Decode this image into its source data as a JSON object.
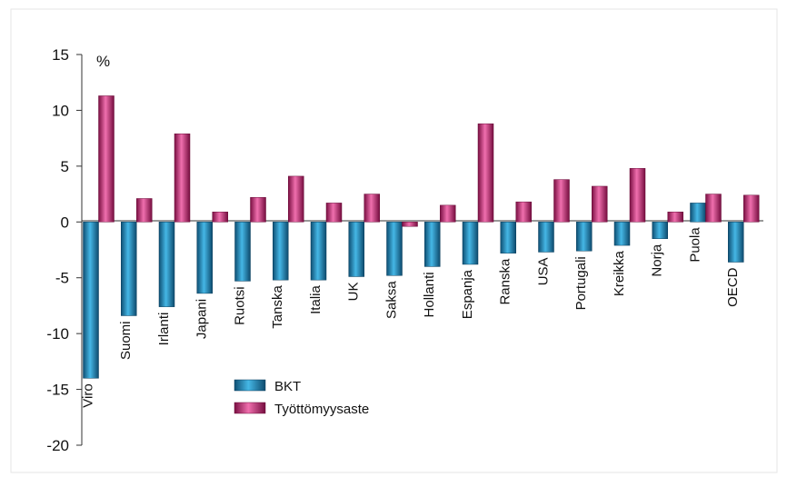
{
  "chart_data": {
    "type": "bar",
    "title": "",
    "ylabel": "%",
    "xlabel": "",
    "ylim": [
      -20,
      15
    ],
    "yticks": [
      15,
      10,
      5,
      0,
      -5,
      -10,
      -15,
      -20
    ],
    "categories": [
      "Viro",
      "Suomi",
      "Irlanti",
      "Japani",
      "Ruotsi",
      "Tanska",
      "Italia",
      "UK",
      "Saksa",
      "Hollanti",
      "Espanja",
      "Ranska",
      "USA",
      "Portugali",
      "Kreikka",
      "Norja",
      "Puola",
      "OECD"
    ],
    "series": [
      {
        "name": "BKT",
        "color": "#1f7fb0",
        "values": [
          -14.0,
          -8.4,
          -7.6,
          -6.4,
          -5.3,
          -5.2,
          -5.2,
          -4.9,
          -4.8,
          -4.0,
          -3.8,
          -2.8,
          -2.7,
          -2.6,
          -2.1,
          -1.5,
          1.7,
          -3.6
        ]
      },
      {
        "name": "Työttömyysaste",
        "color": "#c0206a",
        "values": [
          11.3,
          2.1,
          7.9,
          0.9,
          2.2,
          4.1,
          1.7,
          2.5,
          -0.4,
          1.5,
          8.8,
          1.8,
          3.8,
          3.2,
          4.8,
          0.9,
          2.5,
          2.4
        ]
      }
    ],
    "legend_position": "bottom-center",
    "grid": false
  }
}
